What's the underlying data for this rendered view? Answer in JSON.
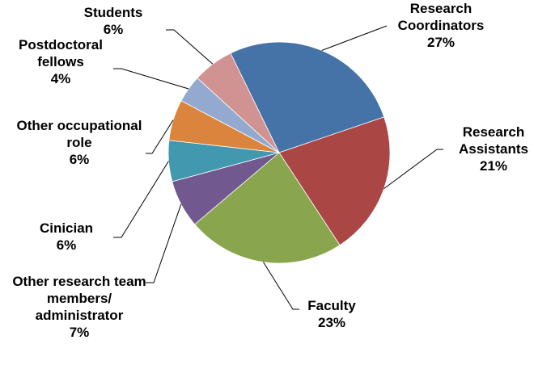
{
  "chart_data": {
    "type": "pie",
    "categories": [
      "Research Coordinators",
      "Research Assistants",
      "Faculty",
      "Other research team members/ administrator",
      "Cinician",
      "Other occupational role",
      "Postdoctoral fellows",
      "Students"
    ],
    "values": [
      27,
      21,
      23,
      7,
      6,
      6,
      4,
      6
    ],
    "value_labels": [
      "27%",
      "21%",
      "23%",
      "7%",
      "6%",
      "6%",
      "4%",
      "6%"
    ],
    "colors": [
      "#4572a7",
      "#aa4643",
      "#89a54e",
      "#71588f",
      "#4198af",
      "#db843d",
      "#93a9cf",
      "#d19392"
    ]
  }
}
